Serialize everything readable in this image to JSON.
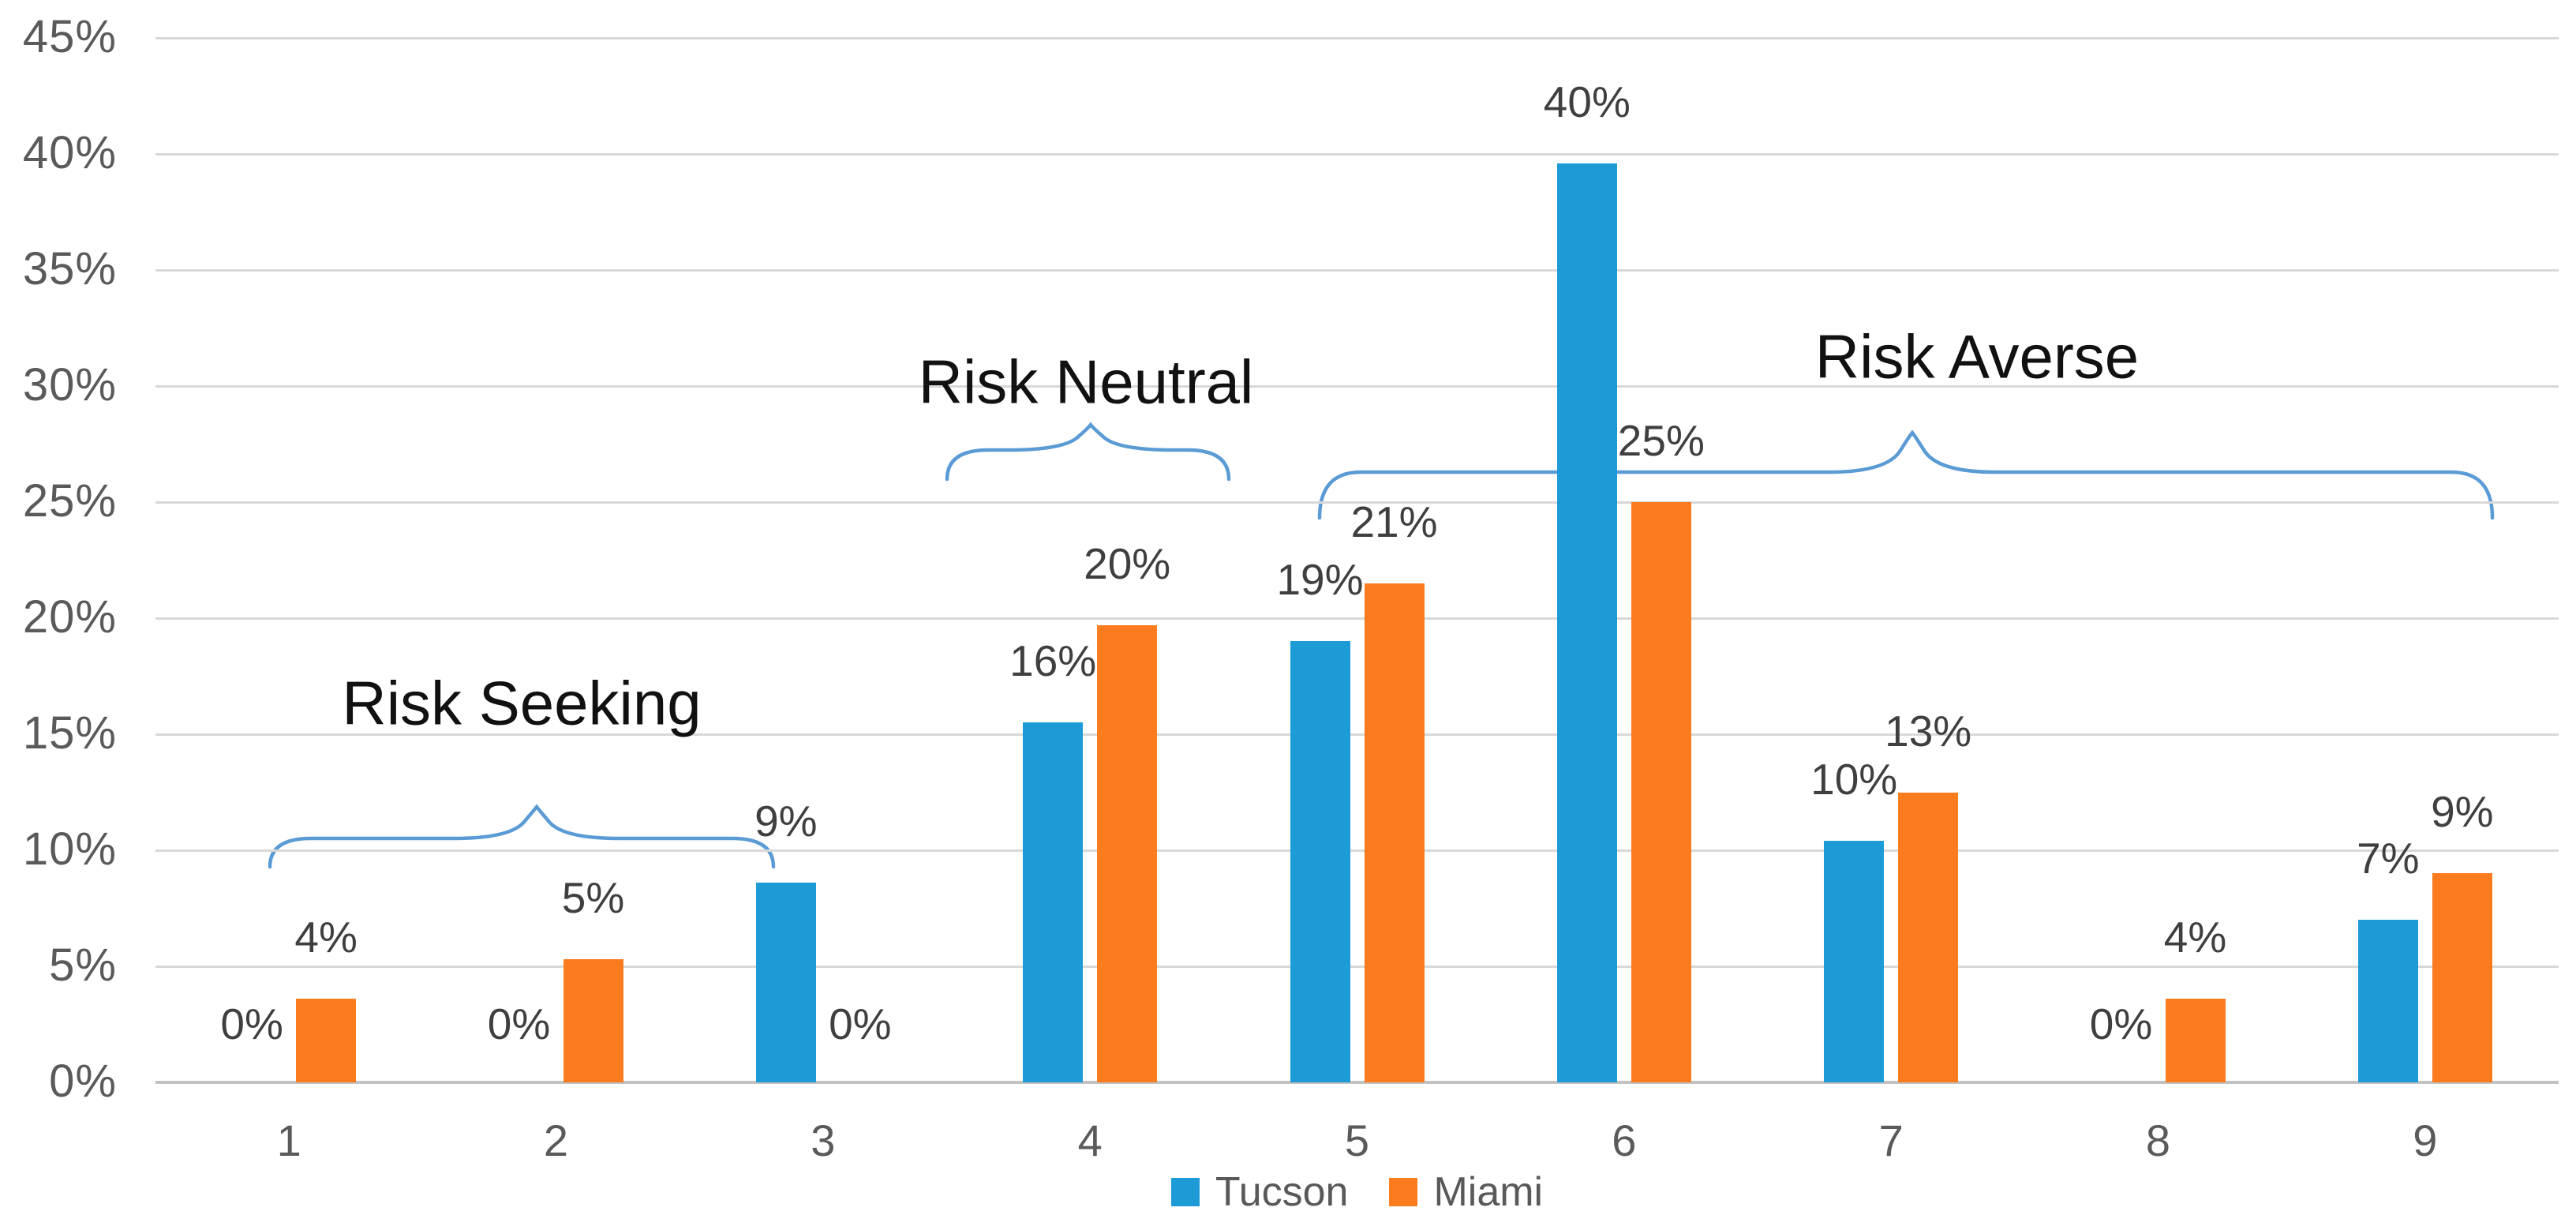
{
  "chart_data": {
    "type": "bar",
    "title": "",
    "xlabel": "",
    "ylabel": "",
    "categories": [
      "1",
      "2",
      "3",
      "4",
      "5",
      "6",
      "7",
      "8",
      "9"
    ],
    "series": [
      {
        "name": "Tucson",
        "color": "#1d9bd7",
        "values": [
          0,
          0,
          9,
          16,
          19,
          40,
          10,
          0,
          7
        ],
        "labels": [
          "0%",
          "0%",
          "9%",
          "16%",
          "19%",
          "40%",
          "10%",
          "0%",
          "7%"
        ],
        "display_heights": [
          0,
          0,
          8.6,
          15.5,
          19,
          39.6,
          10.4,
          0,
          7
        ]
      },
      {
        "name": "Miami",
        "color": "#fa7c1f",
        "values": [
          4,
          5,
          0,
          20,
          21,
          25,
          13,
          4,
          9
        ],
        "labels": [
          "4%",
          "5%",
          "0%",
          "20%",
          "21%",
          "25%",
          "13%",
          "4%",
          "9%"
        ],
        "display_heights": [
          3.6,
          5.3,
          0,
          19.7,
          21.5,
          25,
          12.5,
          3.6,
          9
        ]
      }
    ],
    "ylim": [
      0,
      45
    ],
    "ytick_step": 5,
    "ytick_labels": [
      "0%",
      "5%",
      "10%",
      "15%",
      "20%",
      "25%",
      "30%",
      "35%",
      "40%",
      "45%"
    ],
    "grid": true,
    "legend_position": "bottom",
    "brace_color": "#5b9bd5",
    "annotations": [
      {
        "label": "Risk Seeking",
        "text_x": 661,
        "text_y": 891,
        "brace": {
          "x1": 342,
          "x2": 980,
          "apex": 680,
          "y_line": 1062,
          "y_tip": 1022,
          "y_hook": 1098
        }
      },
      {
        "label": "Risk Neutral",
        "text_x": 1376,
        "text_y": 484,
        "brace": {
          "x1": 1200,
          "x2": 1557,
          "apex": 1382,
          "y_line": 570,
          "y_tip": 538,
          "y_hook": 607
        }
      },
      {
        "label": "Risk Averse",
        "text_x": 2505,
        "text_y": 452,
        "brace": {
          "x1": 1672,
          "x2": 3158,
          "apex": 2423,
          "y_line": 598,
          "y_tip": 548,
          "y_hook": 656
        }
      }
    ]
  }
}
